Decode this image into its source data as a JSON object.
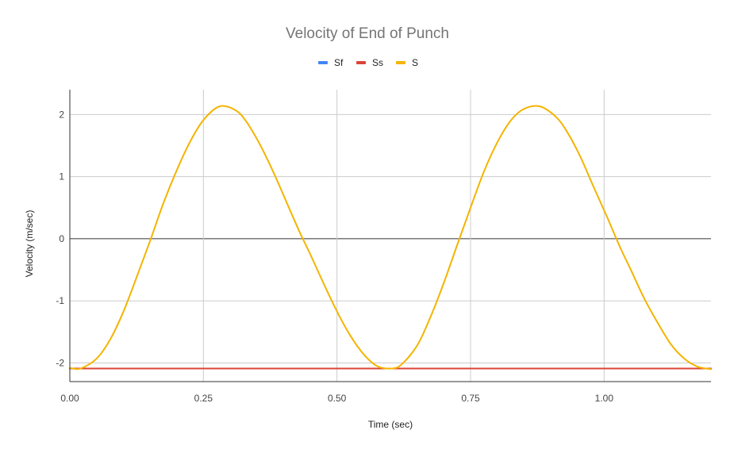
{
  "chart_data": {
    "type": "line",
    "title": "Velocity of End of Punch",
    "xlabel": "Time (sec)",
    "ylabel": "Velocity (m/sec)",
    "xlim": [
      0,
      1.2
    ],
    "ylim": [
      -2.3,
      2.4
    ],
    "x_ticks": [
      0,
      0.25,
      0.5,
      0.75,
      1.0
    ],
    "x_tick_labels": [
      "0.00",
      "0.25",
      "0.50",
      "0.75",
      "1.00"
    ],
    "y_ticks": [
      -2,
      -1,
      0,
      1,
      2
    ],
    "y_tick_labels": [
      "-2",
      "-1",
      "0",
      "1",
      "2"
    ],
    "grid": true,
    "legend_position": "top",
    "series": [
      {
        "name": "Sf",
        "color": "#4285f4",
        "x": [
          0,
          0.1,
          0.2,
          0.3,
          0.4,
          0.5,
          0.6,
          0.7,
          0.8,
          0.9,
          1.0,
          1.1,
          1.2
        ],
        "y": [
          -2.09,
          -2.09,
          -2.09,
          -2.09,
          -2.09,
          -2.09,
          -2.09,
          -2.09,
          -2.09,
          -2.09,
          -2.09,
          -2.09,
          -2.09
        ]
      },
      {
        "name": "Ss",
        "color": "#db4437",
        "x": [
          0,
          0.1,
          0.2,
          0.3,
          0.4,
          0.5,
          0.6,
          0.7,
          0.8,
          0.9,
          1.0,
          1.1,
          1.2
        ],
        "y": [
          -2.09,
          -2.09,
          -2.09,
          -2.09,
          -2.09,
          -2.09,
          -2.09,
          -2.09,
          -2.09,
          -2.09,
          -2.09,
          -2.09,
          -2.09
        ]
      },
      {
        "name": "S",
        "color": "#f4b400",
        "x": [
          0,
          0.02,
          0.05,
          0.075,
          0.1,
          0.125,
          0.15,
          0.175,
          0.2,
          0.225,
          0.25,
          0.28,
          0.31,
          0.33,
          0.355,
          0.38,
          0.405,
          0.43,
          0.45,
          0.475,
          0.5,
          0.525,
          0.55,
          0.575,
          0.6,
          0.62,
          0.65,
          0.675,
          0.7,
          0.725,
          0.75,
          0.775,
          0.8,
          0.825,
          0.85,
          0.88,
          0.91,
          0.93,
          0.955,
          0.98,
          1.005,
          1.03,
          1.05,
          1.075,
          1.1,
          1.125,
          1.15,
          1.175,
          1.2
        ],
        "y": [
          -2.08,
          -2.09,
          -1.93,
          -1.63,
          -1.18,
          -0.62,
          -0.04,
          0.57,
          1.1,
          1.56,
          1.91,
          2.13,
          2.07,
          1.89,
          1.53,
          1.09,
          0.6,
          0.11,
          -0.25,
          -0.72,
          -1.17,
          -1.56,
          -1.86,
          -2.05,
          -2.09,
          -2.03,
          -1.72,
          -1.26,
          -0.71,
          -0.1,
          0.5,
          1.08,
          1.55,
          1.9,
          2.09,
          2.13,
          1.96,
          1.73,
          1.33,
          0.84,
          0.36,
          -0.14,
          -0.5,
          -0.96,
          -1.35,
          -1.7,
          -1.93,
          -2.06,
          -2.1
        ]
      }
    ]
  }
}
